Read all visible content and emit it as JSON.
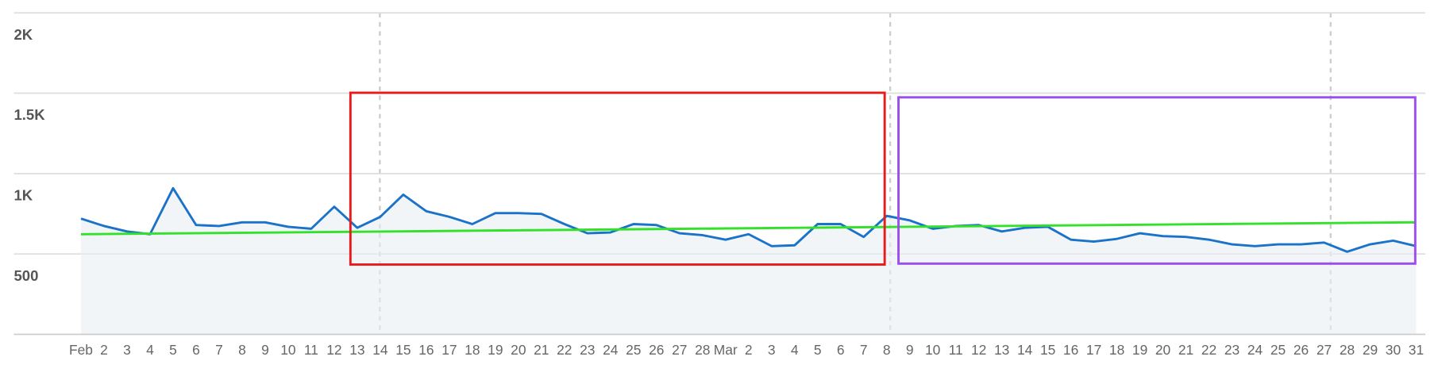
{
  "chart_data": {
    "type": "line",
    "categories": [
      "Feb",
      "2",
      "3",
      "4",
      "5",
      "6",
      "7",
      "8",
      "9",
      "10",
      "11",
      "12",
      "13",
      "14",
      "15",
      "16",
      "17",
      "18",
      "19",
      "20",
      "21",
      "22",
      "23",
      "24",
      "25",
      "26",
      "27",
      "28",
      "Mar",
      "2",
      "3",
      "4",
      "5",
      "6",
      "7",
      "8",
      "9",
      "10",
      "11",
      "12",
      "13",
      "14",
      "15",
      "16",
      "17",
      "18",
      "19",
      "20",
      "21",
      "22",
      "23",
      "24",
      "25",
      "26",
      "27",
      "28",
      "29",
      "30",
      "31"
    ],
    "series": [
      {
        "color": "#1a73c9",
        "values": [
          720,
          674,
          640,
          623,
          909,
          680,
          674,
          697,
          697,
          669,
          657,
          794,
          663,
          731,
          869,
          766,
          731,
          686,
          754,
          754,
          749,
          686,
          629,
          634,
          686,
          680,
          629,
          617,
          589,
          623,
          549,
          554,
          686,
          686,
          606,
          737,
          709,
          657,
          674,
          680,
          640,
          663,
          669,
          589,
          577,
          594,
          629,
          611,
          606,
          589,
          560,
          549,
          560,
          560,
          571,
          514,
          560,
          583,
          549
        ]
      }
    ],
    "trend": {
      "color": "#33e02a",
      "start": 623,
      "end": 697
    },
    "ylim": [
      0,
      2000
    ],
    "yticks": [
      500,
      {
        "value": 1000,
        "label": "1K"
      },
      {
        "value": 1500,
        "label": "1.5K"
      },
      {
        "value": 2000,
        "label": "2K"
      }
    ],
    "grid": true
  }
}
